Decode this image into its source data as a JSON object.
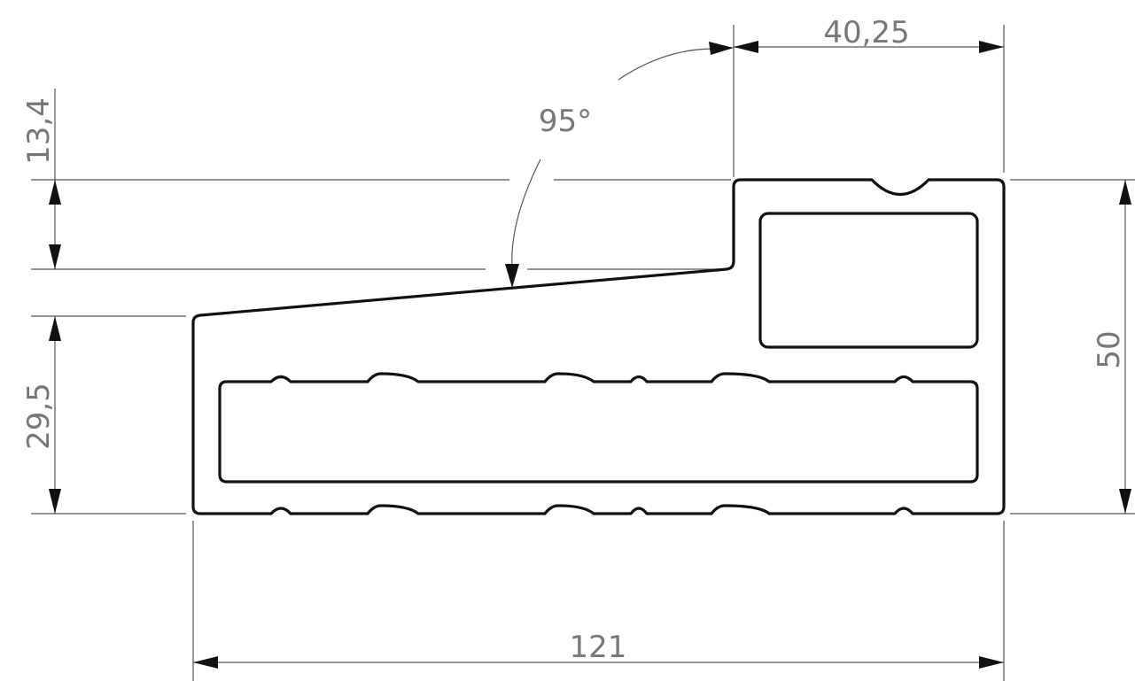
{
  "drawing": {
    "dimensions": {
      "top_width": "40,25",
      "angle": "95°",
      "step_height": "13,4",
      "left_height": "29,5",
      "total_height": "50",
      "total_width": "121"
    }
  }
}
